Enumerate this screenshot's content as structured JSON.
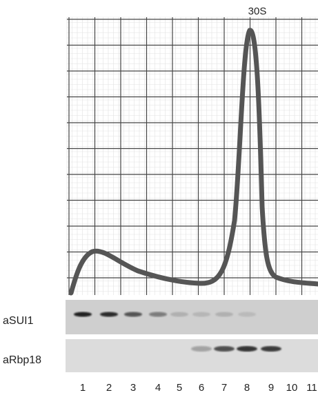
{
  "peak_label": "30S",
  "blots": [
    {
      "label": "aSUI1"
    },
    {
      "label": "aRbp18"
    }
  ],
  "lanes": [
    "1",
    "2",
    "3",
    "4",
    "5",
    "6",
    "7",
    "8",
    "9",
    "10",
    "11"
  ]
}
